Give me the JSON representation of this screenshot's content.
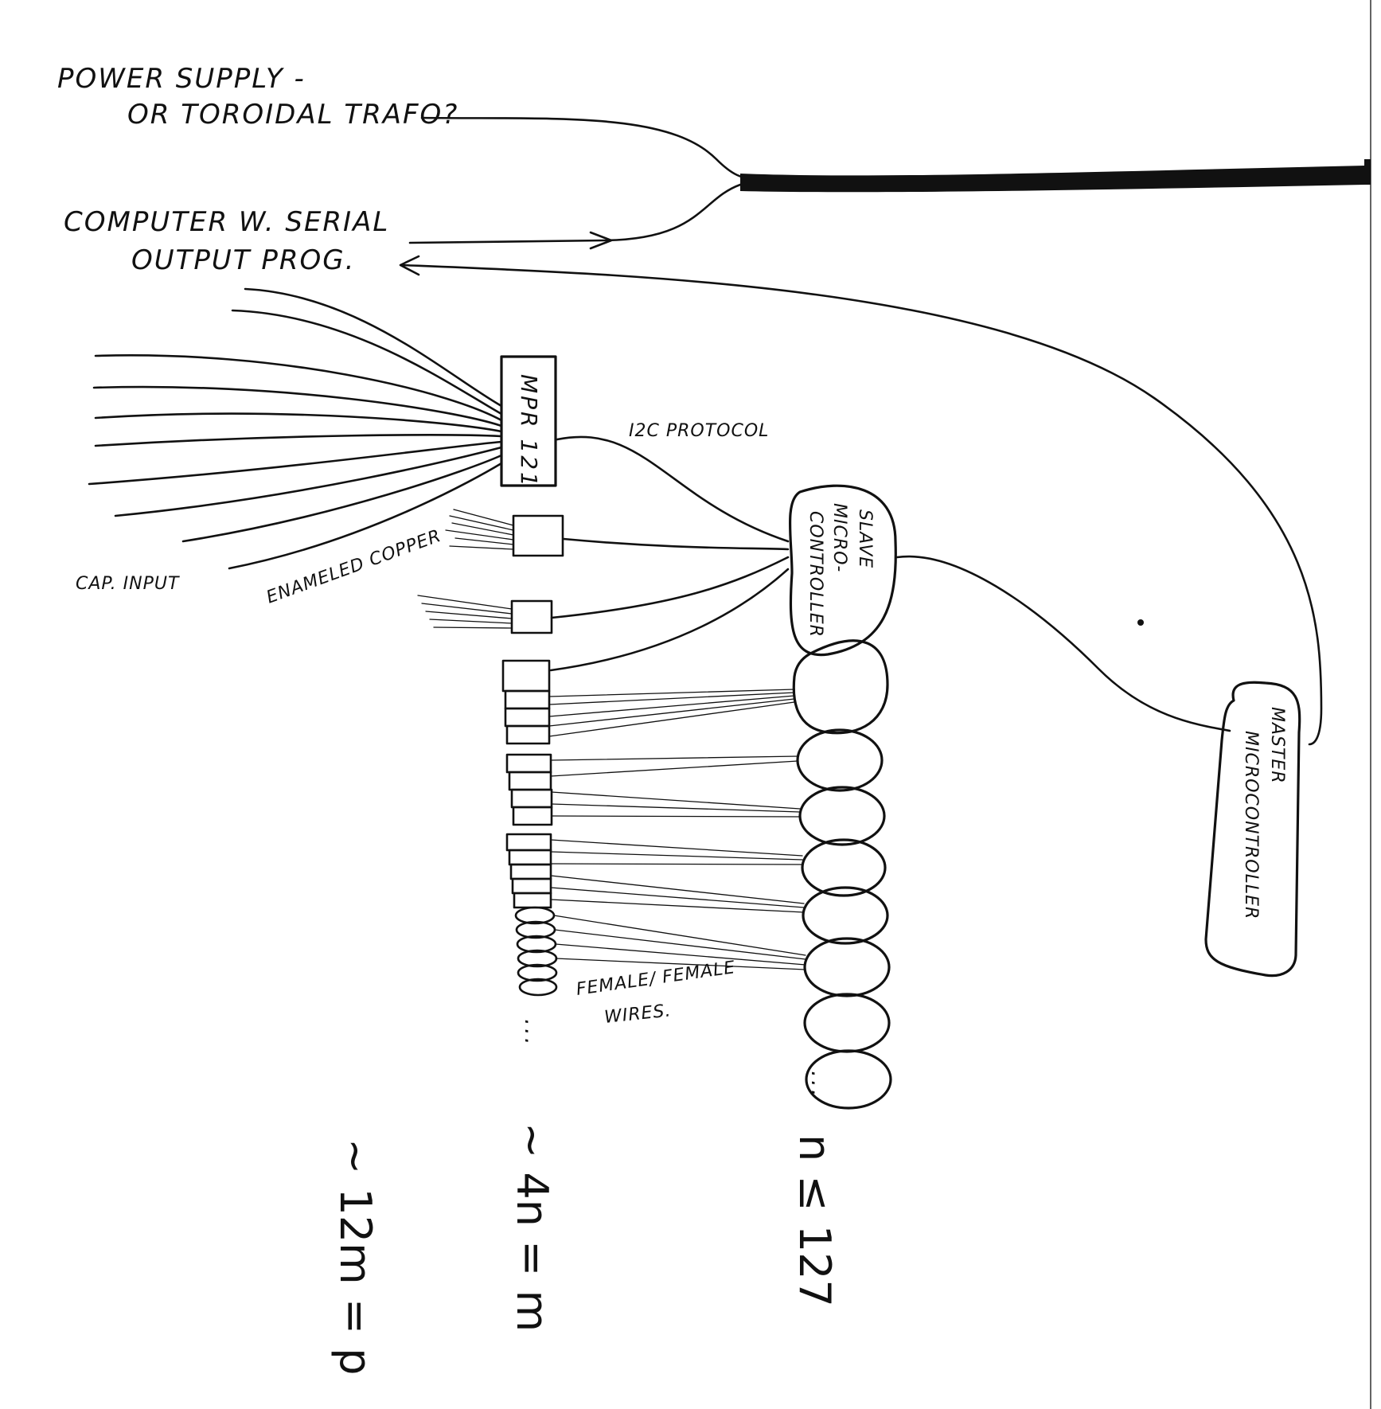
{
  "labels": {
    "power_supply_line1": "POWER SUPPLY -",
    "power_supply_line2": "OR TOROIDAL TRAFO?",
    "computer_line1": "COMPUTER W. SERIAL",
    "computer_line2": "OUTPUT PROG.",
    "mpr121": "MPR 121",
    "i2c": "I2C PROTOCOL",
    "slave_line1": "SLAVE",
    "slave_line2": "MICRO-",
    "slave_line3": "CONTROLLER",
    "master_line1": "MASTER",
    "master_line2": "MICROCONTROLLER",
    "cap_input": "CAP. INPUT",
    "enameled_copper": "ENAMELED COPPER",
    "female_line1": "FEMALE/ FEMALE",
    "female_line2": "WIRES.",
    "ellipsis_left": "...",
    "ellipsis_right": "...",
    "n_formula": "n ≤ 127",
    "m_formula": "~ 4n = m",
    "p_formula": "~ 12m = p"
  },
  "colors": {
    "ink": "#111111",
    "paper": "#ffffff"
  }
}
